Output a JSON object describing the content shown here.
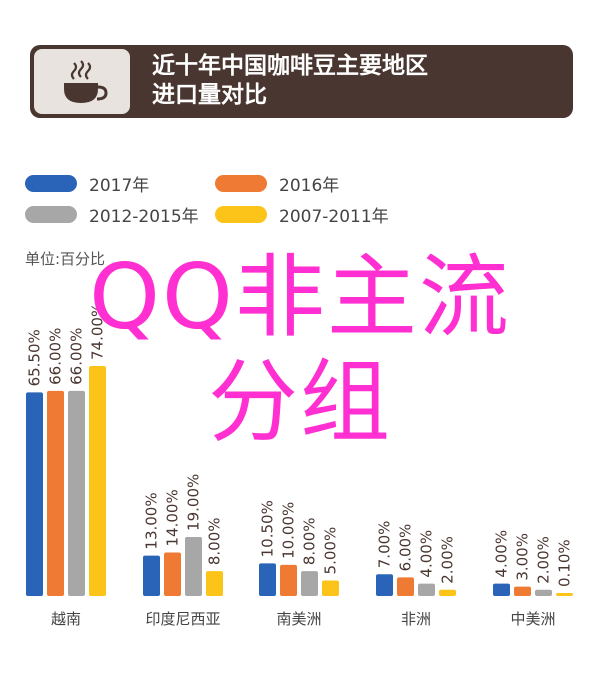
{
  "header": {
    "title": "近十年中国咖啡豆主要地区\n进口量对比",
    "icon": "coffee-cup-icon"
  },
  "overlay_text": "QQ非主流\n分组",
  "colors": {
    "header_bg": "#4a3630",
    "overlay": "#ff2fd2"
  },
  "chart_data": {
    "type": "bar",
    "unit_label": "单位:百分比",
    "categories": [
      "越南",
      "印度尼西亚",
      "南美洲",
      "非洲",
      "中美洲"
    ],
    "series": [
      {
        "name": "2017年",
        "color": "#2a64b8",
        "values": [
          65.5,
          13.0,
          10.5,
          7.0,
          4.0
        ],
        "labels": [
          "65.50%",
          "13.00%",
          "10.50%",
          "7.00%",
          "4.00%"
        ]
      },
      {
        "name": "2016年",
        "color": "#ee7a33",
        "values": [
          66.0,
          14.0,
          10.0,
          6.0,
          3.0
        ],
        "labels": [
          "66.00%",
          "14.00%",
          "10.00%",
          "6.00%",
          "3.00%"
        ]
      },
      {
        "name": "2012-2015年",
        "color": "#a7a7a7",
        "values": [
          66.0,
          19.0,
          8.0,
          4.0,
          2.0
        ],
        "labels": [
          "66.00%",
          "19.00%",
          "8.00%",
          "4.00%",
          "2.00%"
        ]
      },
      {
        "name": "2007-2011年",
        "color": "#fcc419",
        "values": [
          74.0,
          8.0,
          5.0,
          2.0,
          0.1
        ],
        "labels": [
          "74.00%",
          "8.00%",
          "5.00%",
          "2.00%",
          "0.10%"
        ]
      }
    ],
    "legend_position": "top-left",
    "grid": false
  }
}
